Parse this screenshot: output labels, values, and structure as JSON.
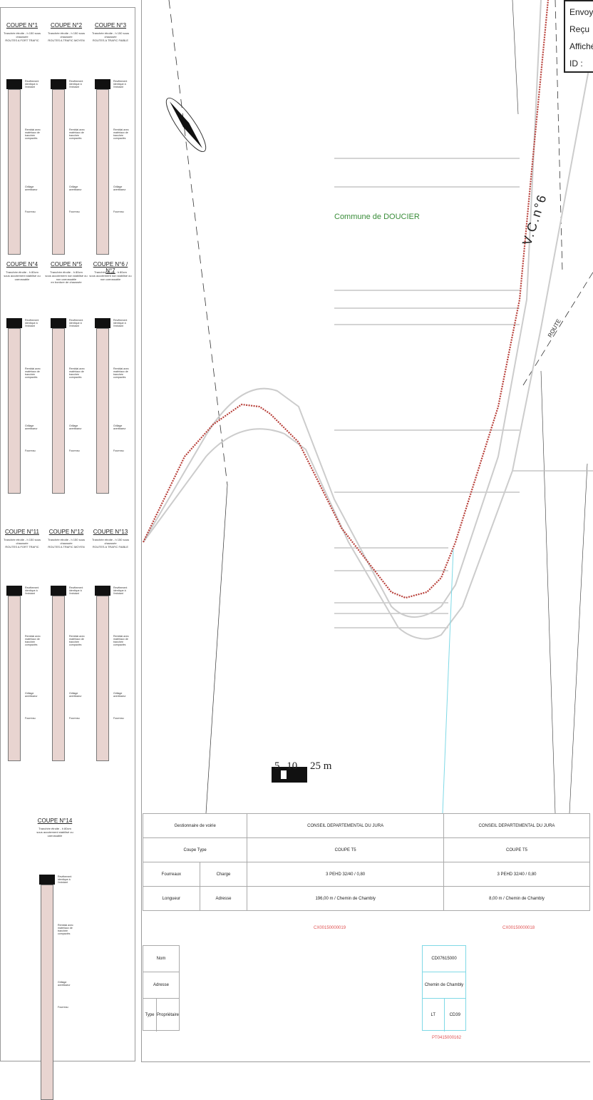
{
  "stamp": {
    "lines": [
      "Envoyé",
      "Reçu",
      "Affiché",
      "ID :"
    ]
  },
  "map": {
    "commune_label": "Commune de DOUCIER",
    "road_label": "V.C.n°6",
    "road_label_2": "ROUTE",
    "scale": {
      "ticks": [
        "5",
        "10",
        "25 m"
      ]
    }
  },
  "sections": [
    {
      "title": "COUPE N°1",
      "desc": "Tranchée étroite - h 150 sous chaussée\nROUTES A FORT TRAFIC"
    },
    {
      "title": "COUPE N°2",
      "desc": "Tranchée étroite - h 150 sous chaussée\nROUTES A TRAFIC MOYEN"
    },
    {
      "title": "COUPE N°3",
      "desc": "Tranchée étroite - h 150 sous chaussée\nROUTES A TRAFIC FAIBLE"
    },
    {
      "title": "COUPE N°4",
      "desc": "Tranchée étroite - h 80cm\nsous accotement stabilisé ou carrossable"
    },
    {
      "title": "COUPE N°5",
      "desc": "Tranchée étroite - h 80cm\nsous accotement non stabilisé ou non carrossable\nen bordure de chaussée"
    },
    {
      "title": "COUPE N°6 / N°7",
      "desc": "Tranchée étroite - h 80cm\nsous accotement non stabilisé ou non carrossable"
    },
    {
      "title": "COUPE N°11",
      "desc": "Tranchée étroite - h 150 sous chaussée\nROUTES A FORT TRAFIC"
    },
    {
      "title": "COUPE N°12",
      "desc": "Tranchée étroite - h 150 sous chaussée\nROUTES A TRAFIC MOYEN"
    },
    {
      "title": "COUPE N°13",
      "desc": "Tranchée étroite - h 150 sous chaussée\nROUTES A TRAFIC FAIBLE"
    },
    {
      "title": "COUPE N°14",
      "desc": "Tranchée étroite - h 80cm\nsous accotement stabilisé ou carrossable"
    }
  ],
  "column_notes": {
    "top": "Revêtement identique à l'existant",
    "mid": "Remblai avec matériaux de tranchée compactés",
    "grillage": "Grillage avertisseur",
    "fourreau": "Fourreau"
  },
  "info_table": {
    "rows": [
      {
        "label": "Gestionnaire de voirie",
        "left": "CONSEIL DEPARTEMENTAL DU JURA",
        "right": "CONSEIL DEPARTEMENTAL DU JURA"
      },
      {
        "label": "Coupe Type",
        "left": "COUPE T5",
        "right": "COUPE T5"
      },
      {
        "label_a": "Fourreaux",
        "label_b": "Charge",
        "left": "3 PEHD 32/40 / 0,80",
        "right": "3 PEHD 32/40 / 0,80"
      },
      {
        "label_a": "Longueur",
        "label_b": "Adresse",
        "left": "196,00 m / Chemin de Chambly",
        "right": "8,00 m / Chemin de Chambly"
      }
    ],
    "refs": [
      "CX00150000019",
      "CX00150000018"
    ],
    "bottom_labels": [
      "Nom",
      "Adresse",
      "Type",
      "Propriétaire"
    ],
    "cyan_box": {
      "name": "CD07615000",
      "address": "Chemin de Chambly",
      "type_a": "LT",
      "type_b": "CD39",
      "ref": "PT0415000162"
    }
  },
  "colors": {
    "cable": "#b8403a",
    "road_line": "#bbbbbb",
    "cyan": "#7fd9e6",
    "commune": "#3a8d3a",
    "ref": "#e05050"
  }
}
